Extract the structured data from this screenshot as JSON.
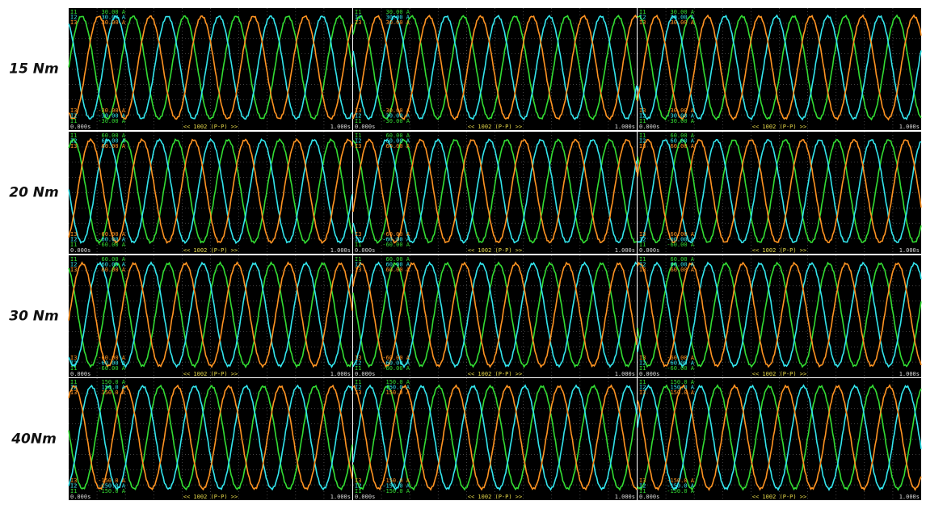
{
  "channels": [
    {
      "name": "I1",
      "color": "#33dd33"
    },
    {
      "name": "I2",
      "color": "#33e6ee"
    },
    {
      "name": "I3",
      "color": "#ff9422"
    }
  ],
  "rows": [
    {
      "label": "15 Nm",
      "top": "30.00 A",
      "bottom": "-30.00 A"
    },
    {
      "label": "20 Nm",
      "top": "60.00 A",
      "bottom": "-60.00 A"
    },
    {
      "label": "30 Nm",
      "top": "60.00 A",
      "bottom": "-60.00 A"
    },
    {
      "label": "40Nm",
      "top": "150.0 A",
      "bottom": "-150.0 A"
    }
  ],
  "footer": {
    "start": "0.000s",
    "middle": "<< 1002 (P-P) >>",
    "end": "1.000s"
  }
}
